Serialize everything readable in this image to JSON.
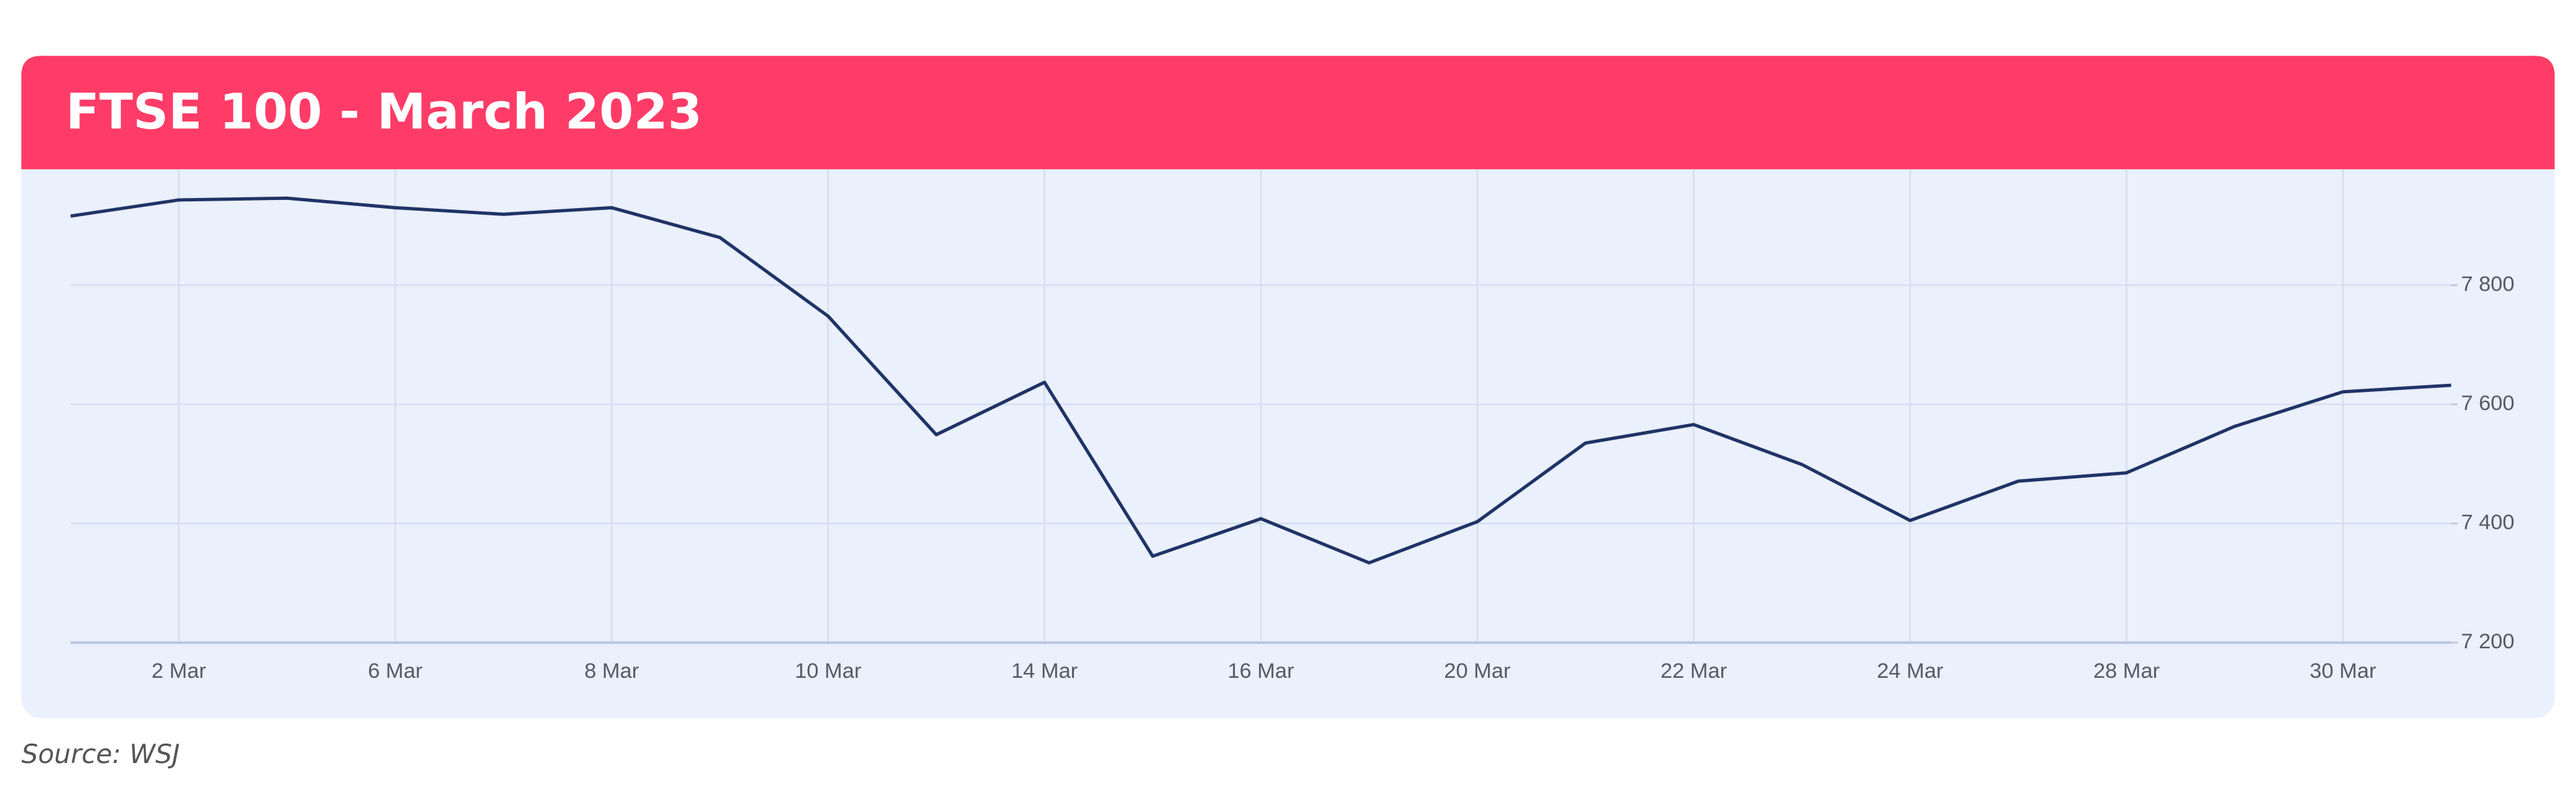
{
  "chart_data": {
    "type": "line",
    "title": "FTSE 100 - March 2023",
    "source": "Source: WSJ",
    "categories": [
      null,
      "2 Mar",
      null,
      "6 Mar",
      null,
      "8 Mar",
      null,
      "10 Mar",
      null,
      "14 Mar",
      null,
      "16 Mar",
      null,
      "20 Mar",
      null,
      "22 Mar",
      null,
      "24 Mar",
      null,
      "28 Mar",
      null,
      "30 Mar",
      null
    ],
    "values": [
      7916,
      7943,
      7946,
      7930,
      7919,
      7930,
      7880,
      7748,
      7549,
      7637,
      7345,
      7408,
      7334,
      7403,
      7535,
      7566,
      7499,
      7405,
      7471,
      7485,
      7563,
      7621,
      7632
    ],
    "color": "#1f3366",
    "ylim": [
      7200,
      8000
    ],
    "yticks": [
      {
        "value": 7200,
        "label": "7 200"
      },
      {
        "value": 7400,
        "label": "7 400"
      },
      {
        "value": 7600,
        "label": "7 600"
      },
      {
        "value": 7800,
        "label": "7 800"
      }
    ],
    "grid": true
  }
}
